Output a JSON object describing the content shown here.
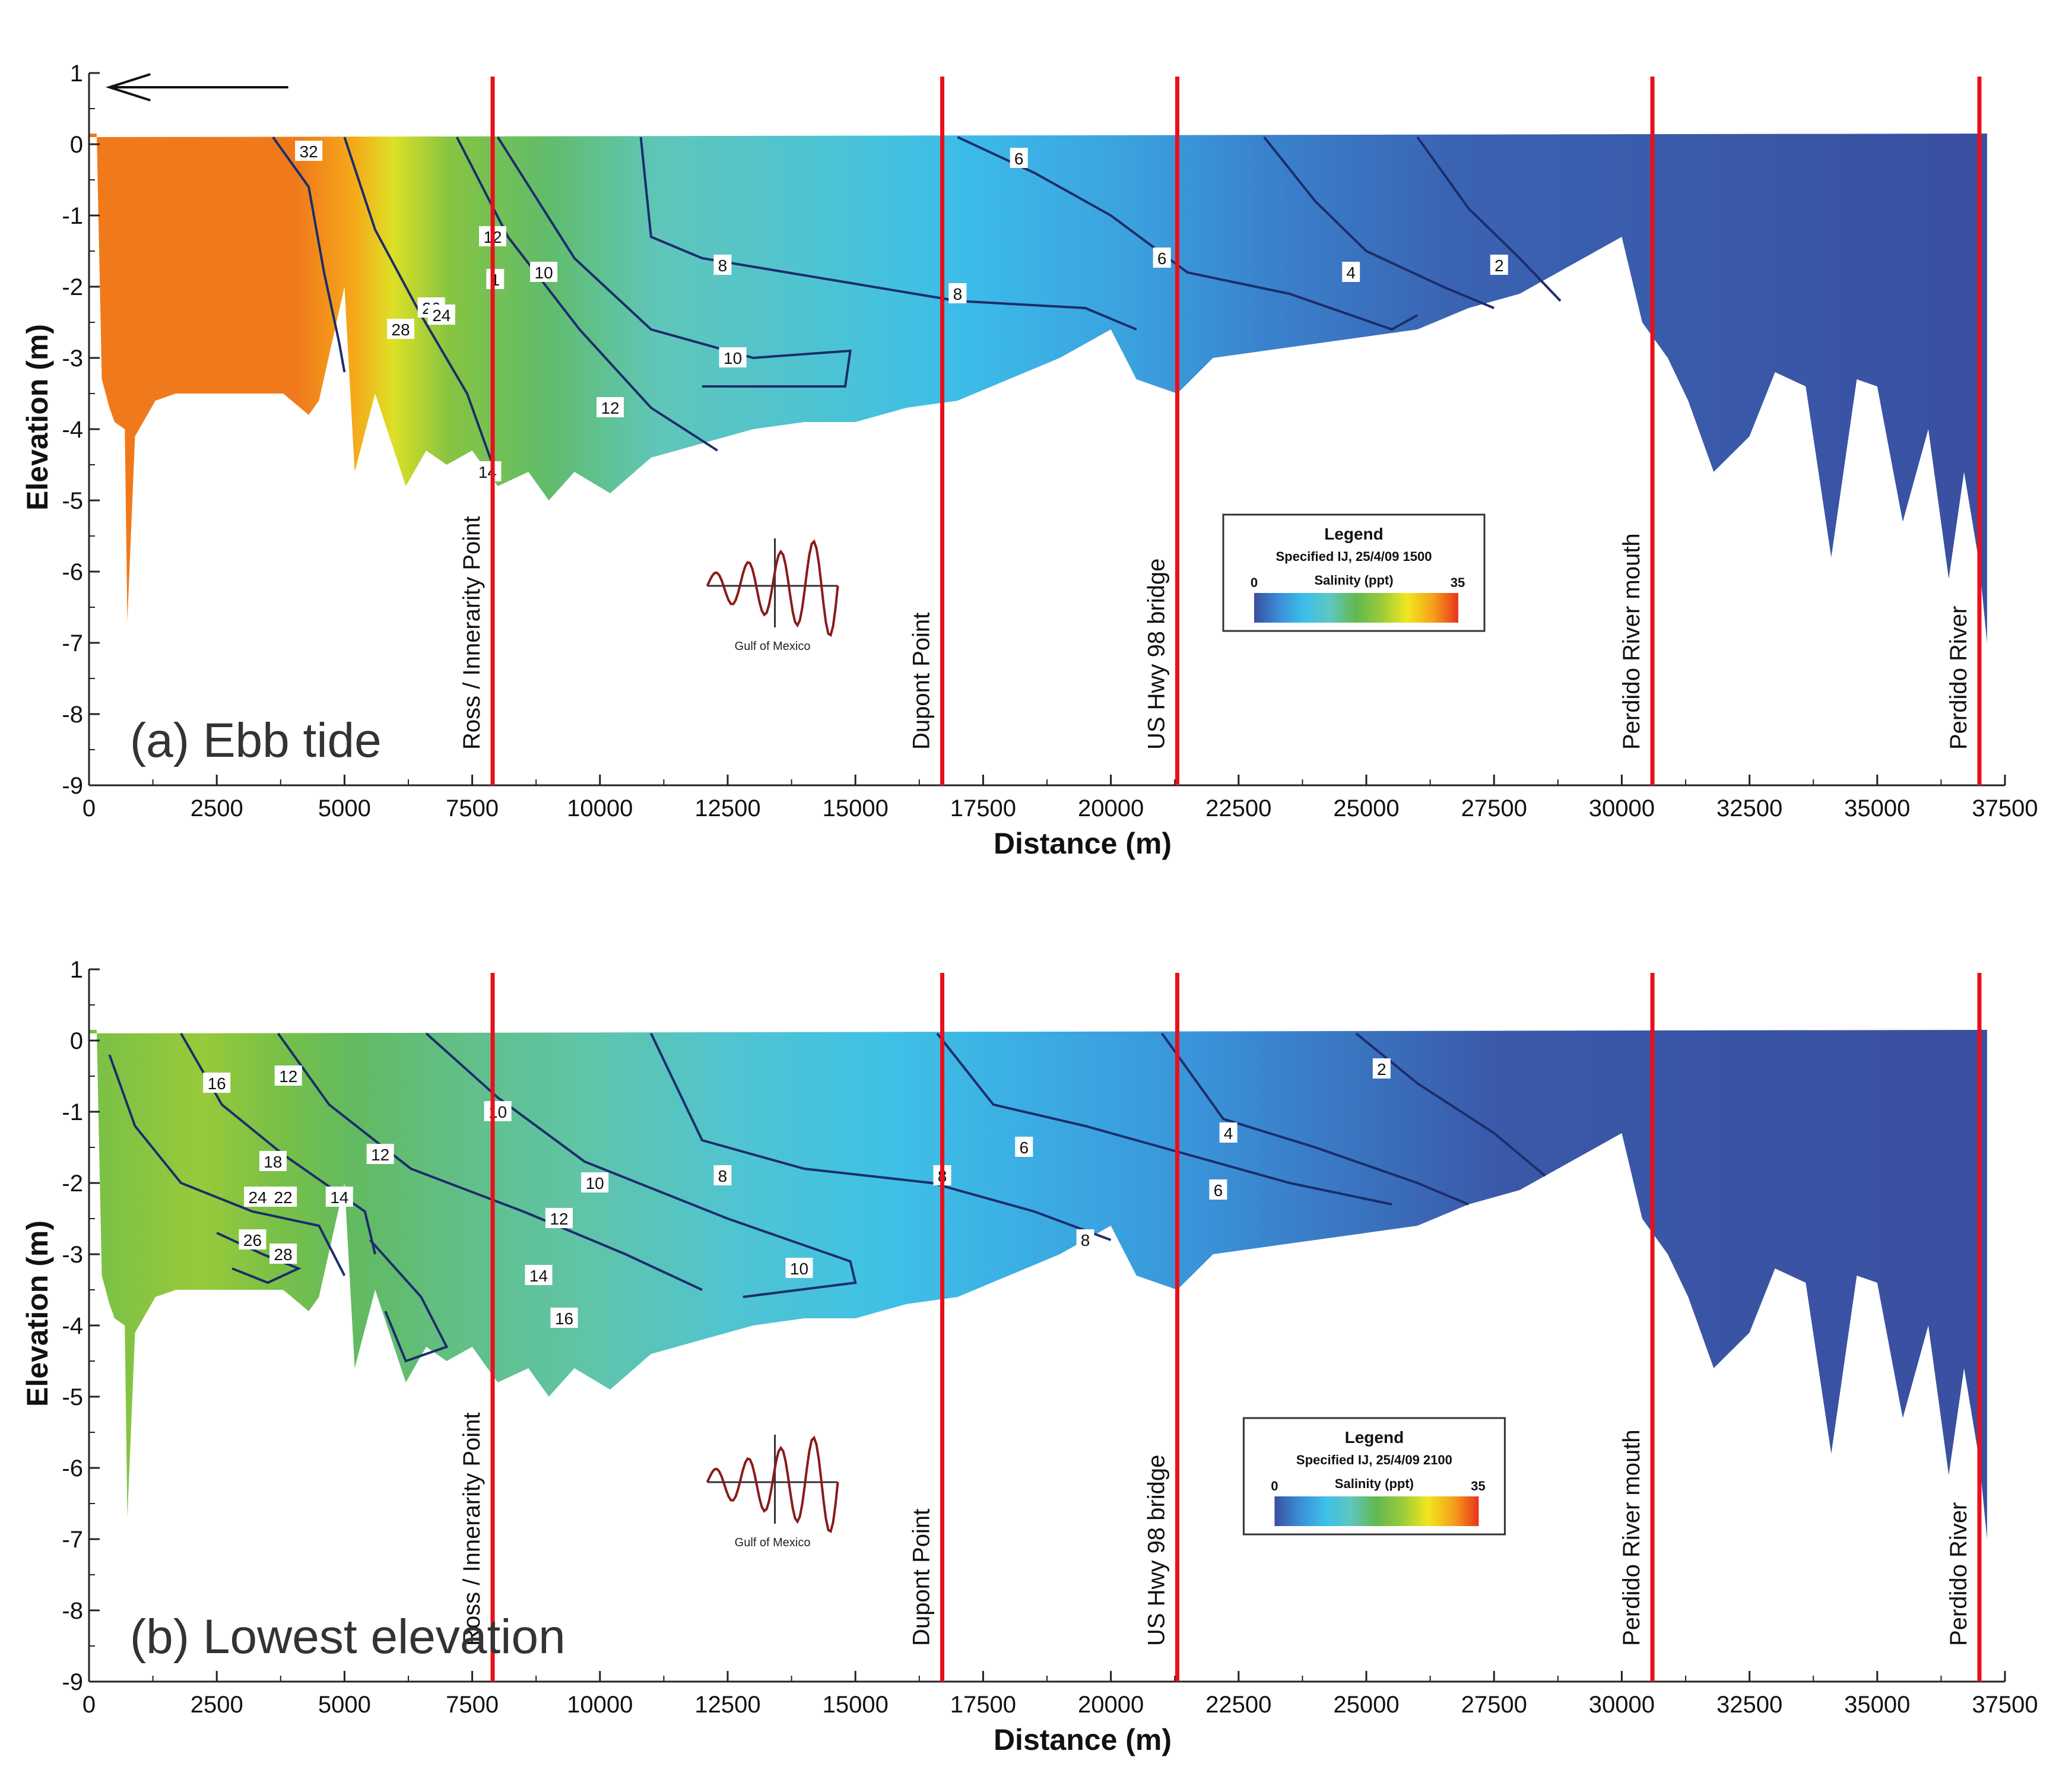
{
  "colors": {
    "marker": "#e8101a",
    "contour": "#1c2d6b",
    "axis": "#222222",
    "inset_wave": "#8a1a1a"
  },
  "chart_data": [
    {
      "type": "heatmap",
      "panel_label": "(a) Ebb tide",
      "xlabel": "Distance (m)",
      "ylabel": "Elevation (m)",
      "xlim": [
        0,
        37500
      ],
      "ylim": [
        -9,
        1
      ],
      "x_ticks": [
        0,
        2500,
        5000,
        7500,
        10000,
        12500,
        15000,
        17500,
        20000,
        22500,
        25000,
        27500,
        30000,
        32500,
        35000,
        37500
      ],
      "y_ticks": [
        1,
        0,
        -1,
        -2,
        -3,
        -4,
        -5,
        -6,
        -7,
        -8,
        -9
      ],
      "direction_arrow": "left",
      "markers": [
        {
          "label": "Ross / Innerarity Point",
          "x": 7900
        },
        {
          "label": "Dupont Point",
          "x": 16700
        },
        {
          "label": "US Hwy 98 bridge",
          "x": 21300
        },
        {
          "label": "Perdido River mouth",
          "x": 30600
        },
        {
          "label": "Perdido River",
          "x": 37000
        }
      ],
      "contour_labels": [
        {
          "text": "32",
          "x": 4300,
          "y": -0.1
        },
        {
          "text": "12",
          "x": 7900,
          "y": -1.3
        },
        {
          "text": "1",
          "x": 7950,
          "y": -1.9
        },
        {
          "text": "10",
          "x": 8900,
          "y": -1.8
        },
        {
          "text": "26",
          "x": 6700,
          "y": -2.3
        },
        {
          "text": "24",
          "x": 6900,
          "y": -2.4
        },
        {
          "text": "28",
          "x": 6100,
          "y": -2.6
        },
        {
          "text": "8",
          "x": 12400,
          "y": -1.7
        },
        {
          "text": "10",
          "x": 12600,
          "y": -3.0
        },
        {
          "text": "12",
          "x": 10200,
          "y": -3.7
        },
        {
          "text": "14",
          "x": 7800,
          "y": -4.6
        },
        {
          "text": "8",
          "x": 17000,
          "y": -2.1
        },
        {
          "text": "6",
          "x": 18200,
          "y": -0.2
        },
        {
          "text": "6",
          "x": 21000,
          "y": -1.6
        },
        {
          "text": "4",
          "x": 24700,
          "y": -1.8
        },
        {
          "text": "2",
          "x": 27600,
          "y": -1.7
        }
      ],
      "legend": {
        "title": "Legend",
        "subtitle": "Specified IJ, 25/4/09 1500",
        "variable": "Salinity (ppt)",
        "min_label": "0",
        "max_label": "35",
        "colorscale": [
          "#3a4fa0",
          "#3a8fd8",
          "#3cc0ea",
          "#5fc7bd",
          "#62b84f",
          "#9acb3a",
          "#f2e61e",
          "#f5a21a",
          "#e8331d"
        ]
      },
      "inset_label": "Gulf of Mexico"
    },
    {
      "type": "heatmap",
      "panel_label": "(b) Lowest elevation",
      "xlabel": "Distance (m)",
      "ylabel": "Elevation (m)",
      "xlim": [
        0,
        37500
      ],
      "ylim": [
        -9,
        1
      ],
      "x_ticks": [
        0,
        2500,
        5000,
        7500,
        10000,
        12500,
        15000,
        17500,
        20000,
        22500,
        25000,
        27500,
        30000,
        32500,
        35000,
        37500
      ],
      "y_ticks": [
        1,
        0,
        -1,
        -2,
        -3,
        -4,
        -5,
        -6,
        -7,
        -8,
        -9
      ],
      "markers": [
        {
          "label": "Ross / Innerarity Point",
          "x": 7900
        },
        {
          "label": "Dupont Point",
          "x": 16700
        },
        {
          "label": "US Hwy 98 bridge",
          "x": 21300
        },
        {
          "label": "Perdido River mouth",
          "x": 30600
        },
        {
          "label": "Perdido River",
          "x": 37000
        }
      ],
      "contour_labels": [
        {
          "text": "16",
          "x": 2500,
          "y": -0.6
        },
        {
          "text": "12",
          "x": 3900,
          "y": -0.5
        },
        {
          "text": "10",
          "x": 8000,
          "y": -1.0
        },
        {
          "text": "12",
          "x": 5700,
          "y": -1.6
        },
        {
          "text": "18",
          "x": 3600,
          "y": -1.7
        },
        {
          "text": "24",
          "x": 3300,
          "y": -2.2
        },
        {
          "text": "22",
          "x": 3800,
          "y": -2.2
        },
        {
          "text": "14",
          "x": 4900,
          "y": -2.2
        },
        {
          "text": "26",
          "x": 3200,
          "y": -2.8
        },
        {
          "text": "28",
          "x": 3800,
          "y": -3.0
        },
        {
          "text": "10",
          "x": 9900,
          "y": -2.0
        },
        {
          "text": "12",
          "x": 9200,
          "y": -2.5
        },
        {
          "text": "14",
          "x": 8800,
          "y": -3.3
        },
        {
          "text": "16",
          "x": 9300,
          "y": -3.9
        },
        {
          "text": "8",
          "x": 12400,
          "y": -1.9
        },
        {
          "text": "10",
          "x": 13900,
          "y": -3.2
        },
        {
          "text": "8",
          "x": 16700,
          "y": -1.9
        },
        {
          "text": "6",
          "x": 18300,
          "y": -1.5
        },
        {
          "text": "8",
          "x": 19500,
          "y": -2.8
        },
        {
          "text": "6",
          "x": 22100,
          "y": -2.1
        },
        {
          "text": "4",
          "x": 22300,
          "y": -1.3
        },
        {
          "text": "2",
          "x": 25300,
          "y": -0.4
        }
      ],
      "legend": {
        "title": "Legend",
        "subtitle": "Specified IJ, 25/4/09 2100",
        "variable": "Salinity (ppt)",
        "min_label": "0",
        "max_label": "35",
        "colorscale": [
          "#3a4fa0",
          "#3a8fd8",
          "#3cc0ea",
          "#5fc7bd",
          "#62b84f",
          "#9acb3a",
          "#f2e61e",
          "#f5a21a",
          "#e8331d"
        ]
      },
      "inset_label": "Gulf of Mexico"
    }
  ]
}
